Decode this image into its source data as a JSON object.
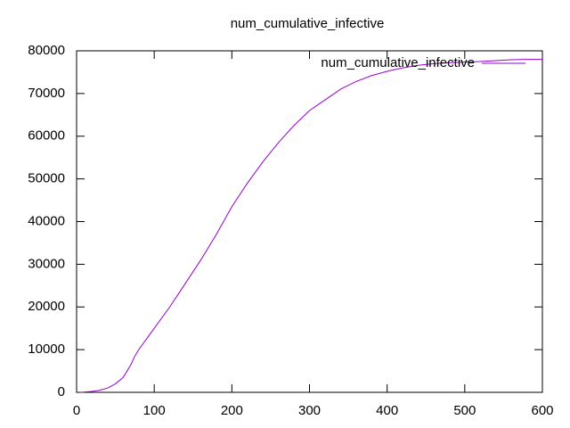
{
  "chart_data": {
    "type": "line",
    "title": "num_cumulative_infective",
    "x": [
      5,
      20,
      30,
      40,
      50,
      60,
      65,
      70,
      75,
      80,
      90,
      100,
      120,
      140,
      160,
      180,
      200,
      220,
      240,
      260,
      280,
      300,
      320,
      340,
      360,
      380,
      400,
      420,
      440,
      460,
      480,
      500,
      520,
      540,
      560,
      580,
      600
    ],
    "series": [
      {
        "name": "num_cumulative_infective",
        "color": "#9400d3",
        "values": [
          0,
          200,
          500,
          1000,
          2000,
          3500,
          5000,
          6500,
          8500,
          10000,
          12500,
          15000,
          20000,
          25500,
          31000,
          37000,
          43500,
          49000,
          54000,
          58500,
          62500,
          66000,
          68500,
          71000,
          72800,
          74200,
          75200,
          76000,
          76600,
          77000,
          77200,
          77400,
          77500,
          77700,
          77900,
          78000,
          78000
        ]
      }
    ],
    "xlim": [
      0,
      600
    ],
    "xticks": [
      0,
      100,
      200,
      300,
      400,
      500,
      600
    ],
    "ylim": [
      0,
      80000
    ],
    "yticks": [
      0,
      10000,
      20000,
      30000,
      40000,
      50000,
      60000,
      70000,
      80000
    ],
    "grid": false,
    "legend": "top-right"
  }
}
